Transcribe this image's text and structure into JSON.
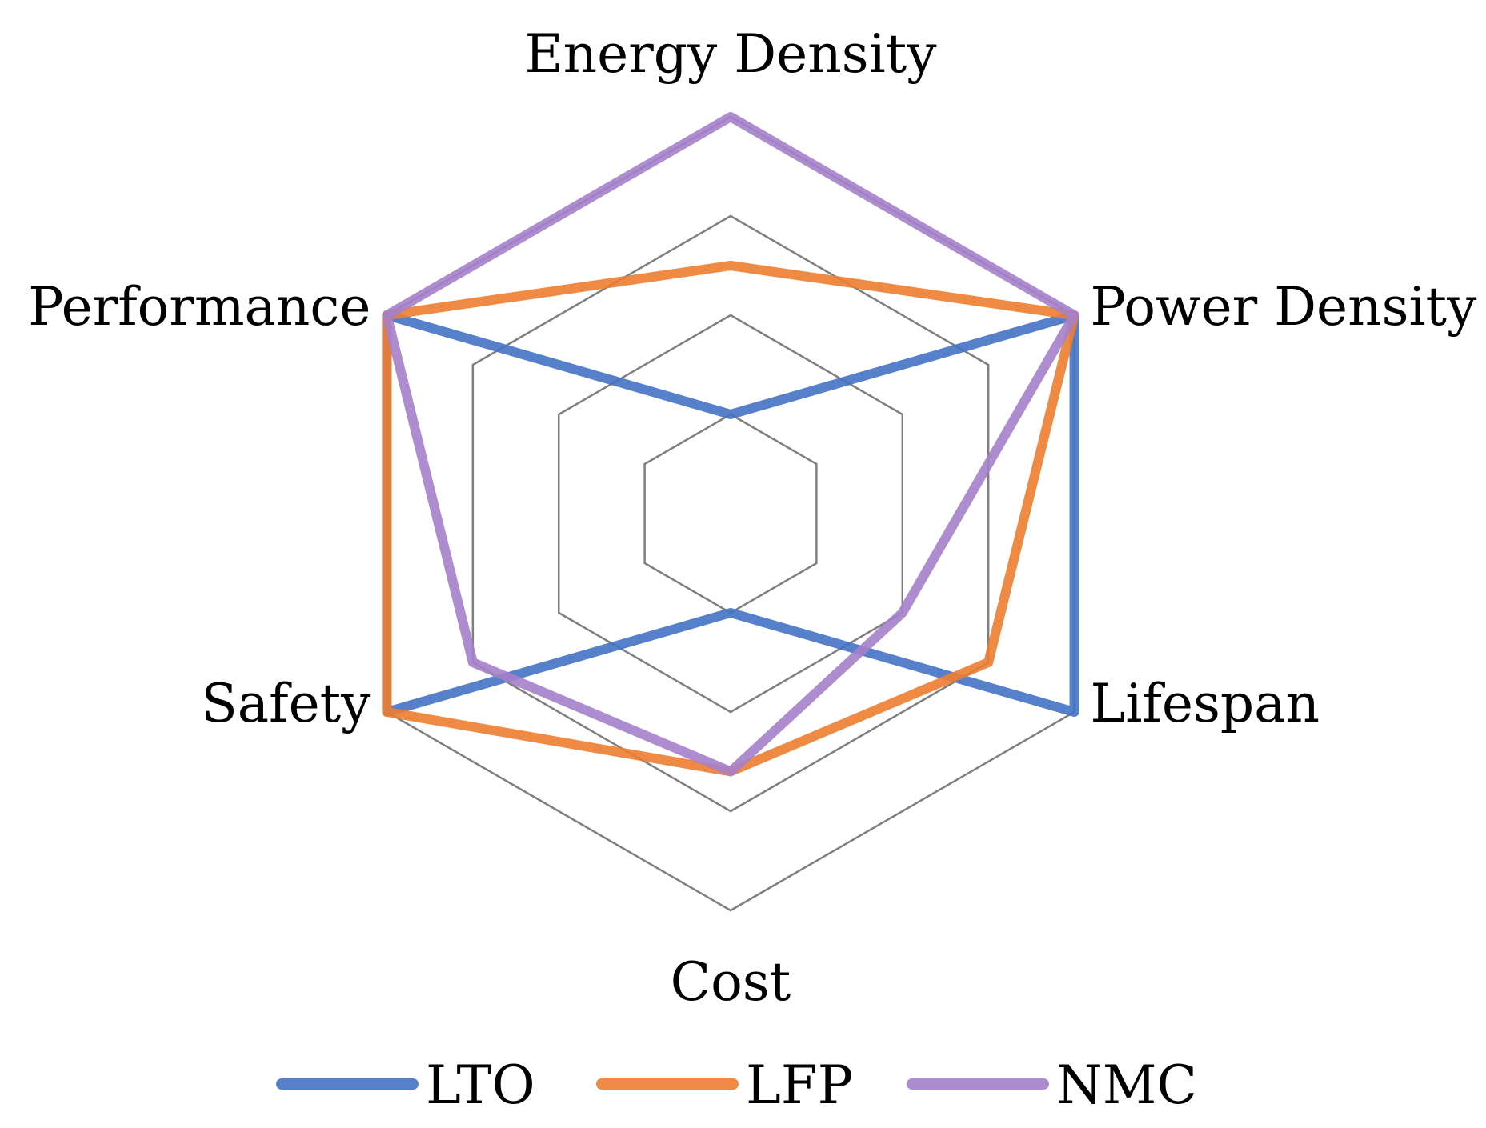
{
  "chart_data": {
    "type": "radar",
    "title": "",
    "axes": [
      "Energy Density",
      "Power Density",
      "Lifespan",
      "Cost",
      "Safety",
      "Performance"
    ],
    "rmax": 4,
    "grid_levels": [
      1,
      2,
      3,
      4
    ],
    "grid_on": true,
    "legend_position": "bottom",
    "series": [
      {
        "name": "LTO",
        "color": "#4472C4",
        "values": [
          1,
          4,
          4,
          1,
          4,
          4
        ]
      },
      {
        "name": "LFP",
        "color": "#ED7D31",
        "values": [
          2.5,
          4,
          3,
          2.6,
          4,
          4
        ]
      },
      {
        "name": "NMC",
        "color": "#A57FCB",
        "values": [
          4,
          4,
          2,
          2.6,
          3,
          4
        ]
      }
    ]
  }
}
